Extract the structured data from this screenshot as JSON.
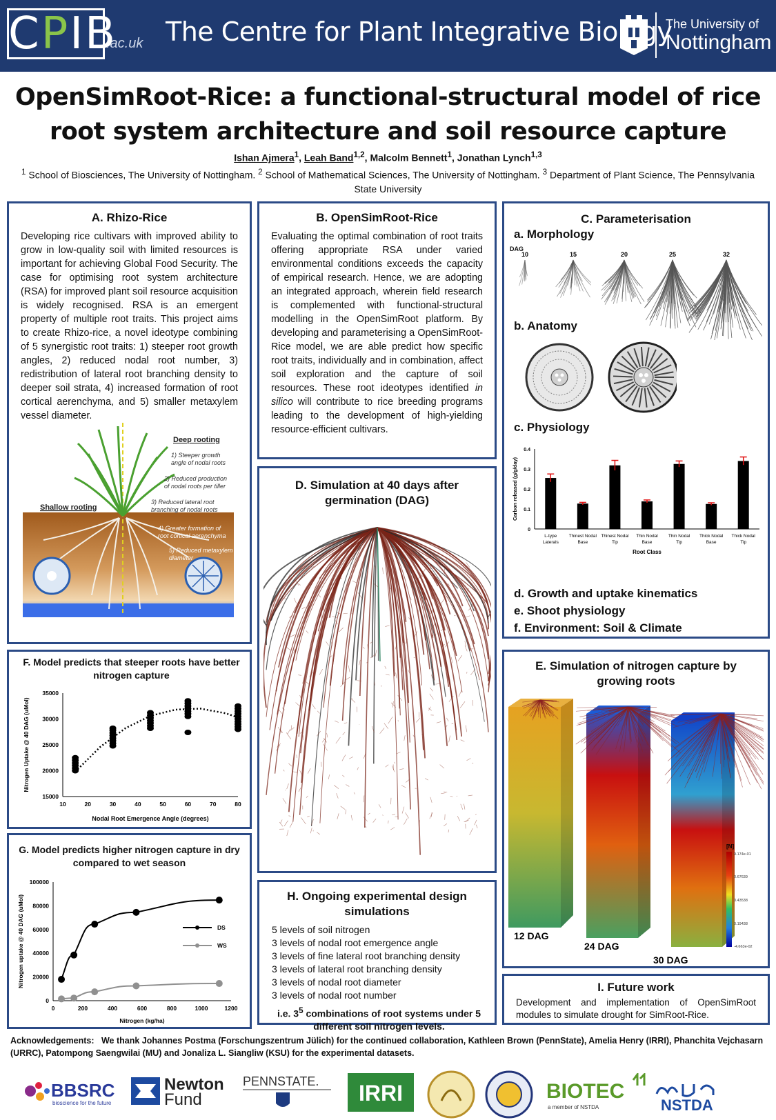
{
  "header": {
    "cpib_c": "C",
    "cpib_p": "P",
    "cpib_ib": "IB",
    "cpib_suffix": ".ac.uk",
    "centre_name": "The Centre for Plant Integrative Biology",
    "university_line1": "The University of",
    "university_line2": "Nottingham"
  },
  "poster": {
    "title": "OpenSimRoot-Rice: a functional-structural model of rice root system architecture and soil resource capture",
    "authors": [
      {
        "name": "Ishan Ajmera",
        "sup": "1"
      },
      {
        "name": "Leah Band",
        "sup": "1,2"
      },
      {
        "name": "Malcolm Bennett",
        "sup": "1"
      },
      {
        "name": "Jonathan Lynch",
        "sup": "1,3"
      }
    ],
    "affiliations": [
      {
        "sup": "1",
        "text": "School of Biosciences, The University of Nottingham."
      },
      {
        "sup": "2",
        "text": "School of Mathematical Sciences, The University of Nottingham."
      },
      {
        "sup": "3",
        "text": "Department of Plant Science, The Pennsylvania State University"
      }
    ]
  },
  "panelA": {
    "title": "A. Rhizo-Rice",
    "body": "Developing rice cultivars with improved ability to grow in low-quality soil with limited resources is important for achieving Global Food Security. The case for optimising root system architecture (RSA) for improved plant soil resource acquisition is widely recognised. RSA is an emergent property of multiple root traits. This project aims to create Rhizo-rice, a novel ideotype combining of 5 synergistic root traits: 1) steeper root growth angles, 2) reduced nodal root number, 3) redistribution of lateral root branching density to deeper soil strata, 4) increased formation of root cortical aerenchyma, and 5) smaller metaxylem vessel diameter.",
    "figure": {
      "deep_rooting": "Deep rooting",
      "shallow_rooting": "Shallow rooting",
      "traits": [
        "1) Steeper growth angle of nodal roots",
        "2) Reduced production of nodal roots per tiller",
        "3) Reduced lateral root branching of nodal roots",
        "4) Greater formation of root cortical aerenchyma",
        "5) Reduced metaxylem diameter"
      ]
    }
  },
  "panelB": {
    "title": "B. OpenSimRoot-Rice",
    "body_before": "Evaluating the optimal combination of root traits offering appropriate RSA under varied environmental conditions exceeds the capacity of empirical research. Hence, we are adopting an integrated approach, wherein field research is complemented with functional-structural modelling in the OpenSimRoot platform. By developing and parameterising a OpenSimRoot-Rice model, we are able predict how specific root traits, individually and in combination, affect soil exploration and the capture of soil resources. These root ideotypes identified ",
    "body_italic": "in silico",
    "body_after": " will contribute to rice breeding programs leading to the development of high-yielding resource-efficient cultivars."
  },
  "panelC": {
    "title": "C. Parameterisation",
    "morphology": "a. Morphology",
    "dag_label": "DAG",
    "dag_values": [
      "10",
      "15",
      "20",
      "25",
      "32"
    ],
    "anatomy": "b. Anatomy",
    "physiology": "c. Physiology",
    "items": [
      "d. Growth and uptake kinematics",
      "e.  Shoot physiology",
      "f.  Environment: Soil & Climate"
    ]
  },
  "panelD": {
    "title": "D. Simulation at 40 days after germination (DAG)"
  },
  "panelE": {
    "title": "E. Simulation of nitrogen capture by growing roots",
    "labels": [
      "12 DAG",
      "24 DAG",
      "30 DAG"
    ],
    "colorbar_title": "[N]",
    "colorbar_ticks": [
      "9.174e-01",
      "0.67639",
      "0.43538",
      "0.19438",
      "-4.663e-02"
    ]
  },
  "panelF": {
    "title": "F. Model predicts that steeper roots have better nitrogen capture"
  },
  "panelG": {
    "title": "G.  Model predicts higher nitrogen capture in dry compared to wet season"
  },
  "panelH": {
    "title": "H. Ongoing experimental design simulations",
    "items": [
      "5 levels of soil nitrogen",
      "3 levels of nodal root emergence angle",
      "3 levels of fine lateral root branching density",
      "3 levels of lateral root branching density",
      "3 levels of nodal root diameter",
      "3 levels of nodal root number"
    ],
    "note_a": "i.e. 3",
    "note_sup": "5",
    "note_b": " combinations of root systems under 5 different soil nitrogen levels."
  },
  "panelI": {
    "title": "I. Future work",
    "body": "Development and implementation of OpenSimRoot modules to simulate drought for SimRoot-Rice."
  },
  "ack": {
    "label": "Acknowledgements:",
    "text": "We thank Johannes Postma (Forschungszentrum Jülich) for the continued collaboration, Kathleen Brown (PennState), Amelia Henry (IRRI), Phanchita Vejchasarn (URRC), Patompong Saengwilai (MU) and  Jonaliza L. Siangliw (KSU) for the  experimental datasets."
  },
  "logos": {
    "bbsrc": "BBSRC",
    "bbsrc_sub": "bioscience for the future",
    "newton_1": "Newton",
    "newton_2": "Fund",
    "pennstate": "PENNSTATE.",
    "irri": "IRRI",
    "biotec": "BIOTEC",
    "biotec_sub": "a member of NSTDA",
    "nstda": "NSTDA"
  },
  "chart_data": [
    {
      "id": "physiology",
      "type": "bar",
      "ylabel": "Carbon released (g/g/day)",
      "xlabel": "Root Class",
      "ylim": [
        0,
        0.4
      ],
      "yticks": [
        0,
        0.1,
        0.2,
        0.3,
        0.4
      ],
      "categories": [
        "L-type Laterals",
        "Thinest Nodal Base",
        "Thinest Nodal Tip",
        "Thin Nodal Base",
        "Thin Nodal Tip",
        "Thick Nodal Base",
        "Thick Nodal Tip"
      ],
      "values": [
        0.255,
        0.127,
        0.318,
        0.138,
        0.325,
        0.125,
        0.34
      ],
      "errors": [
        0.02,
        0.006,
        0.025,
        0.007,
        0.015,
        0.006,
        0.02
      ],
      "bar_color": "#000000",
      "error_color": "#e01010"
    },
    {
      "id": "steeper-roots",
      "type": "scatter",
      "title": "F. Model predicts that steeper roots have better nitrogen capture",
      "xlabel": "Nodal Root Emergence Angle (degrees)",
      "ylabel": "Nitrogen Uptake @ 40 DAG (uMol)",
      "xlim": [
        10,
        80
      ],
      "ylim": [
        15000,
        35000
      ],
      "xticks": [
        10,
        20,
        30,
        40,
        50,
        60,
        70,
        80
      ],
      "yticks": [
        15000,
        20000,
        25000,
        30000,
        35000
      ],
      "points": [
        [
          15,
          20000
        ],
        [
          15,
          20500
        ],
        [
          15,
          21000
        ],
        [
          15,
          21500
        ],
        [
          15,
          22000
        ],
        [
          15,
          22500
        ],
        [
          30,
          24800
        ],
        [
          30,
          25300
        ],
        [
          30,
          25800
        ],
        [
          30,
          26300
        ],
        [
          30,
          26800
        ],
        [
          30,
          27300
        ],
        [
          30,
          27800
        ],
        [
          30,
          28200
        ],
        [
          45,
          28200
        ],
        [
          45,
          28700
        ],
        [
          45,
          29200
        ],
        [
          45,
          29700
        ],
        [
          45,
          30200
        ],
        [
          45,
          30700
        ],
        [
          45,
          31200
        ],
        [
          60,
          27400
        ],
        [
          60,
          30500
        ],
        [
          60,
          31000
        ],
        [
          60,
          31500
        ],
        [
          60,
          32000
        ],
        [
          60,
          32500
        ],
        [
          60,
          33000
        ],
        [
          60,
          33500
        ],
        [
          80,
          28000
        ],
        [
          80,
          28500
        ],
        [
          80,
          29000
        ],
        [
          80,
          29500
        ],
        [
          80,
          30000
        ],
        [
          80,
          30500
        ],
        [
          80,
          31000
        ],
        [
          80,
          31500
        ],
        [
          80,
          32000
        ],
        [
          80,
          32500
        ]
      ],
      "trend": [
        [
          15,
          19800
        ],
        [
          25,
          24600
        ],
        [
          35,
          28200
        ],
        [
          45,
          30600
        ],
        [
          55,
          31800
        ],
        [
          65,
          32000
        ],
        [
          75,
          31100
        ],
        [
          80,
          30300
        ]
      ]
    },
    {
      "id": "season",
      "type": "line",
      "xlabel": "Nitrogen (kg/ha)",
      "ylabel": "Nitrogen uptake @ 40 DAG (uMol)",
      "xlim": [
        0,
        1200
      ],
      "ylim": [
        0,
        100000
      ],
      "xticks": [
        0,
        200,
        400,
        600,
        800,
        1000,
        1200
      ],
      "yticks": [
        0,
        20000,
        40000,
        60000,
        80000,
        100000
      ],
      "legend_position": "right",
      "series": [
        {
          "name": "DS",
          "color": "#000000",
          "x": [
            56,
            140,
            280,
            560,
            1120
          ],
          "y": [
            18000,
            38500,
            64500,
            74500,
            84800
          ]
        },
        {
          "name": "WS",
          "color": "#909090",
          "x": [
            56,
            140,
            280,
            560,
            1120
          ],
          "y": [
            1500,
            2200,
            7500,
            12500,
            14500
          ]
        }
      ]
    }
  ]
}
